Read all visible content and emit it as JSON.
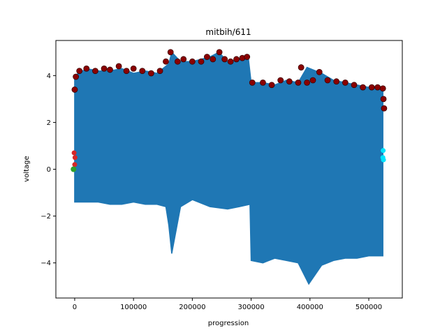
{
  "chart_data": {
    "type": "line",
    "title": "mitbih/611",
    "xlabel": "progression",
    "ylabel": "voltage",
    "xlim": [
      -32000,
      557000
    ],
    "ylim": [
      -5.5,
      5.5
    ],
    "xticks": [
      0,
      100000,
      200000,
      300000,
      400000,
      500000
    ],
    "xtick_labels": [
      "0",
      "100000",
      "200000",
      "300000",
      "400000",
      "500000"
    ],
    "yticks": [
      -4,
      -2,
      0,
      2,
      4
    ],
    "ytick_labels": [
      "−4",
      "−2",
      "0",
      "2",
      "4"
    ],
    "grid": false,
    "legend": "none",
    "colors": {
      "signal": "#1f77b4",
      "peak_markers": "#8b0000",
      "onset_markers": "#d62728",
      "start_marker": "#2ca02c",
      "end_markers": "#00e5ff"
    },
    "series": [
      {
        "role": "signal-upper-envelope",
        "x": [
          0,
          20000,
          40000,
          60000,
          80000,
          100000,
          120000,
          140000,
          160000,
          165000,
          180000,
          200000,
          230000,
          245000,
          260000,
          280000,
          295000,
          300000,
          320000,
          340000,
          360000,
          380000,
          395000,
          420000,
          440000,
          460000,
          480000,
          500000,
          524000
        ],
        "values": [
          4.0,
          4.3,
          4.2,
          4.2,
          4.3,
          4.1,
          4.2,
          4.1,
          4.5,
          5.0,
          4.6,
          4.6,
          4.8,
          5.0,
          4.6,
          4.7,
          4.8,
          3.7,
          3.7,
          3.6,
          3.8,
          3.7,
          4.35,
          4.1,
          3.8,
          3.7,
          3.6,
          3.5,
          3.5
        ]
      },
      {
        "role": "signal-lower-envelope",
        "x": [
          0,
          20000,
          40000,
          60000,
          80000,
          100000,
          120000,
          140000,
          155000,
          160000,
          165000,
          180000,
          200000,
          230000,
          260000,
          280000,
          298000,
          300000,
          320000,
          340000,
          360000,
          380000,
          398000,
          420000,
          440000,
          460000,
          480000,
          500000,
          524000
        ],
        "values": [
          -1.4,
          -1.4,
          -1.4,
          -1.5,
          -1.5,
          -1.4,
          -1.5,
          -1.5,
          -1.6,
          -2.4,
          -3.6,
          -1.6,
          -1.3,
          -1.6,
          -1.7,
          -1.6,
          -1.5,
          -3.9,
          -4.0,
          -3.8,
          -3.9,
          -4.0,
          -4.9,
          -4.1,
          -3.9,
          -3.8,
          -3.8,
          -3.7,
          -3.7
        ]
      }
    ],
    "peaks": [
      [
        0,
        3.4
      ],
      [
        2000,
        3.95
      ],
      [
        8000,
        4.2
      ],
      [
        20000,
        4.3
      ],
      [
        35000,
        4.2
      ],
      [
        50000,
        4.3
      ],
      [
        60000,
        4.25
      ],
      [
        75000,
        4.4
      ],
      [
        88000,
        4.2
      ],
      [
        100000,
        4.3
      ],
      [
        115000,
        4.2
      ],
      [
        130000,
        4.1
      ],
      [
        145000,
        4.2
      ],
      [
        155000,
        4.6
      ],
      [
        163000,
        5.0
      ],
      [
        175000,
        4.6
      ],
      [
        185000,
        4.7
      ],
      [
        200000,
        4.6
      ],
      [
        215000,
        4.6
      ],
      [
        225000,
        4.8
      ],
      [
        235000,
        4.7
      ],
      [
        246000,
        5.0
      ],
      [
        255000,
        4.7
      ],
      [
        265000,
        4.6
      ],
      [
        275000,
        4.7
      ],
      [
        285000,
        4.75
      ],
      [
        293000,
        4.8
      ],
      [
        302000,
        3.7
      ],
      [
        320000,
        3.7
      ],
      [
        335000,
        3.6
      ],
      [
        350000,
        3.8
      ],
      [
        365000,
        3.75
      ],
      [
        380000,
        3.7
      ],
      [
        385000,
        4.35
      ],
      [
        395000,
        3.7
      ],
      [
        405000,
        3.8
      ],
      [
        416000,
        4.15
      ],
      [
        430000,
        3.8
      ],
      [
        445000,
        3.75
      ],
      [
        460000,
        3.7
      ],
      [
        475000,
        3.6
      ],
      [
        490000,
        3.5
      ],
      [
        505000,
        3.5
      ],
      [
        515000,
        3.5
      ],
      [
        524000,
        3.45
      ],
      [
        525000,
        3.0
      ],
      [
        526000,
        2.6
      ]
    ],
    "onsets": [
      [
        -1000,
        0.7
      ],
      [
        500,
        0.5
      ],
      [
        0,
        0.2
      ]
    ],
    "starts": [
      [
        -2000,
        0.0
      ]
    ],
    "ends": [
      [
        524500,
        0.8
      ],
      [
        525000,
        0.4
      ],
      [
        524000,
        0.5
      ]
    ]
  }
}
